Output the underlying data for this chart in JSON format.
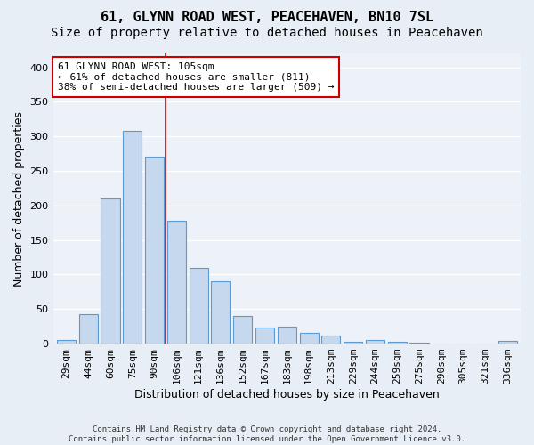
{
  "title": "61, GLYNN ROAD WEST, PEACEHAVEN, BN10 7SL",
  "subtitle": "Size of property relative to detached houses in Peacehaven",
  "xlabel": "Distribution of detached houses by size in Peacehaven",
  "ylabel": "Number of detached properties",
  "categories": [
    "29sqm",
    "44sqm",
    "60sqm",
    "75sqm",
    "90sqm",
    "106sqm",
    "121sqm",
    "136sqm",
    "152sqm",
    "167sqm",
    "183sqm",
    "198sqm",
    "213sqm",
    "229sqm",
    "244sqm",
    "259sqm",
    "275sqm",
    "290sqm",
    "305sqm",
    "321sqm",
    "336sqm"
  ],
  "values": [
    5,
    42,
    210,
    308,
    270,
    178,
    110,
    90,
    40,
    23,
    25,
    15,
    12,
    3,
    5,
    3,
    1,
    0,
    0,
    0,
    4
  ],
  "bar_color": "#c5d8ed",
  "bar_edge_color": "#5b9bd5",
  "vline_x": 4.5,
  "vline_color": "#cc0000",
  "annotation_line1": "61 GLYNN ROAD WEST: 105sqm",
  "annotation_line2": "← 61% of detached houses are smaller (811)",
  "annotation_line3": "38% of semi-detached houses are larger (509) →",
  "annotation_box_facecolor": "#ffffff",
  "annotation_box_edgecolor": "#cc0000",
  "ylim": [
    0,
    420
  ],
  "yticks": [
    0,
    50,
    100,
    150,
    200,
    250,
    300,
    350,
    400
  ],
  "background_color": "#e8eef5",
  "plot_background_color": "#edf2f8",
  "grid_color": "#ffffff",
  "footer_line1": "Contains HM Land Registry data © Crown copyright and database right 2024.",
  "footer_line2": "Contains public sector information licensed under the Open Government Licence v3.0.",
  "title_fontsize": 11,
  "subtitle_fontsize": 10,
  "axis_tick_fontsize": 8,
  "ylabel_fontsize": 9,
  "xlabel_fontsize": 9,
  "annot_fontsize": 8
}
